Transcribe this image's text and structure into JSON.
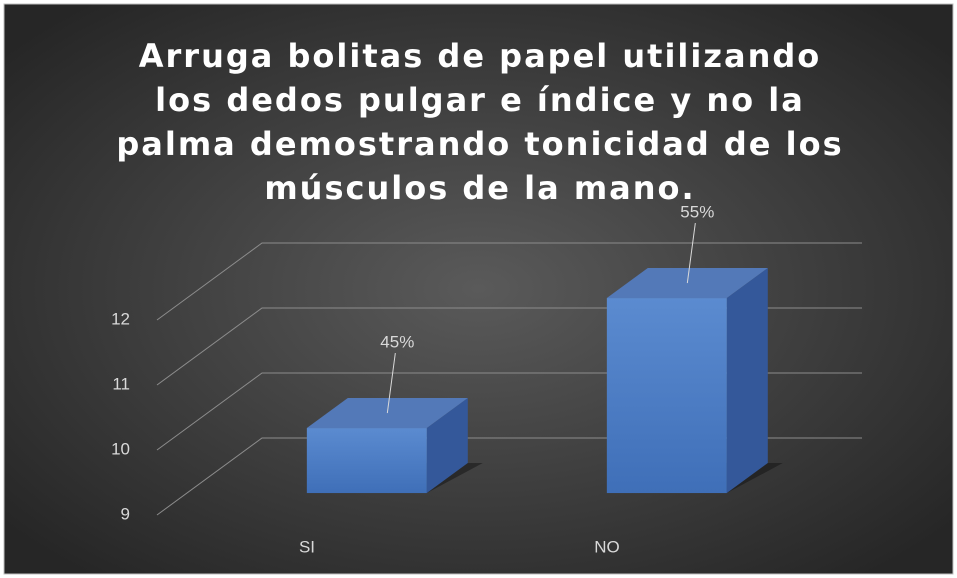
{
  "chart_data": {
    "type": "bar3d",
    "title": "Arruga bolitas de papel utilizando los dedos pulgar e índice y no la palma demostrando tonicidad de los músculos de la mano.",
    "categories": [
      "SI",
      "NO"
    ],
    "values": [
      10,
      12
    ],
    "value_labels": [
      "45%",
      "55%"
    ],
    "color": "#4a7cc7",
    "ylim": [
      9,
      12
    ],
    "yticks": [
      9,
      10,
      11,
      12
    ],
    "grid": true
  }
}
